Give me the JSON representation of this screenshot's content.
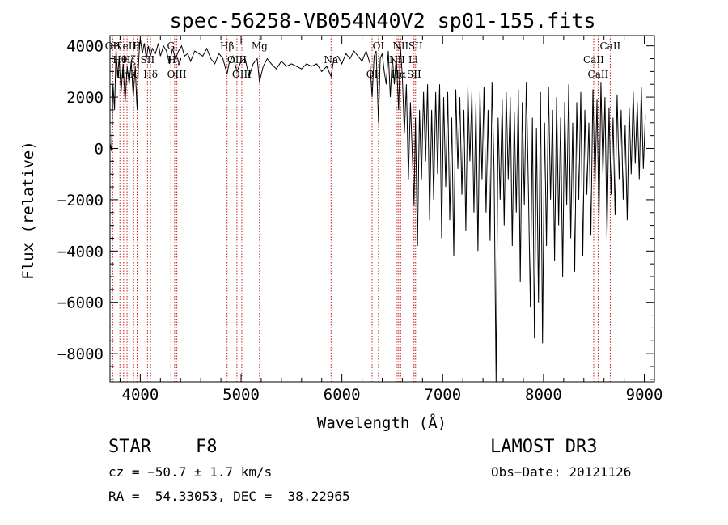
{
  "chart_data": {
    "type": "line",
    "title": "spec-56258-VB054N40V2_sp01-155.fits",
    "xlabel": "Wavelength (Å)",
    "ylabel": "Flux (relative)",
    "xlim": [
      3700,
      9100
    ],
    "ylim": [
      -9100,
      4400
    ],
    "xticks": [
      4000,
      5000,
      6000,
      7000,
      8000,
      9000
    ],
    "xtick_labels": [
      "4000",
      "5000",
      "6000",
      "7000",
      "8000",
      "9000"
    ],
    "yticks": [
      4000,
      2000,
      0,
      -2000,
      -4000,
      -6000,
      -8000
    ],
    "ytick_labels": [
      "4000",
      "2000",
      "0",
      "−2000",
      "−4000",
      "−6000",
      "−8000"
    ],
    "series": [
      {
        "name": "flux",
        "color": "#000000",
        "x": [
          3700,
          3715,
          3730,
          3745,
          3760,
          3775,
          3790,
          3810,
          3830,
          3850,
          3870,
          3890,
          3910,
          3930,
          3950,
          3965,
          3970,
          3980,
          3990,
          4000,
          4020,
          4040,
          4060,
          4080,
          4100,
          4120,
          4150,
          4180,
          4200,
          4230,
          4260,
          4290,
          4320,
          4350,
          4380,
          4410,
          4440,
          4470,
          4500,
          4540,
          4580,
          4620,
          4660,
          4700,
          4740,
          4780,
          4820,
          4861,
          4880,
          4920,
          4960,
          5000,
          5040,
          5080,
          5120,
          5160,
          5183,
          5220,
          5260,
          5300,
          5350,
          5400,
          5450,
          5500,
          5550,
          5600,
          5650,
          5700,
          5750,
          5800,
          5850,
          5893,
          5920,
          5960,
          6000,
          6040,
          6080,
          6120,
          6160,
          6200,
          6240,
          6280,
          6300,
          6320,
          6340,
          6363,
          6380,
          6400,
          6420,
          6440,
          6460,
          6480,
          6500,
          6520,
          6540,
          6563,
          6580,
          6600,
          6620,
          6640,
          6660,
          6680,
          6700,
          6716,
          6730,
          6750,
          6770,
          6790,
          6810,
          6830,
          6850,
          6870,
          6890,
          6910,
          6930,
          6950,
          6970,
          6990,
          7010,
          7030,
          7050,
          7070,
          7090,
          7110,
          7130,
          7150,
          7170,
          7190,
          7210,
          7230,
          7250,
          7270,
          7290,
          7310,
          7330,
          7350,
          7370,
          7390,
          7410,
          7430,
          7450,
          7470,
          7490,
          7510,
          7530,
          7550,
          7570,
          7590,
          7610,
          7630,
          7650,
          7670,
          7690,
          7710,
          7730,
          7750,
          7770,
          7790,
          7810,
          7830,
          7850,
          7870,
          7890,
          7910,
          7930,
          7950,
          7970,
          7990,
          8010,
          8030,
          8050,
          8070,
          8090,
          8110,
          8130,
          8150,
          8170,
          8190,
          8210,
          8230,
          8250,
          8270,
          8290,
          8310,
          8330,
          8350,
          8370,
          8390,
          8410,
          8430,
          8450,
          8470,
          8490,
          8510,
          8530,
          8550,
          8570,
          8590,
          8610,
          8630,
          8650,
          8670,
          8690,
          8710,
          8730,
          8750,
          8770,
          8790,
          8810,
          8830,
          8850,
          8870,
          8890,
          8910,
          8930,
          8950,
          8970,
          8990,
          9010
        ],
        "y": [
          200,
          -100,
          2500,
          1500,
          3900,
          2800,
          3500,
          2200,
          3300,
          1800,
          3200,
          2500,
          3400,
          2000,
          3200,
          1800,
          1500,
          3100,
          3800,
          4300,
          3700,
          4100,
          3500,
          4000,
          3600,
          3900,
          3700,
          4100,
          3600,
          4000,
          3800,
          3300,
          3900,
          3500,
          3800,
          4000,
          3600,
          3700,
          3400,
          3800,
          3700,
          3600,
          3900,
          3500,
          3300,
          3700,
          3500,
          2900,
          3300,
          3600,
          3000,
          3400,
          3500,
          2800,
          3300,
          3500,
          2600,
          3200,
          3500,
          3300,
          3100,
          3400,
          3200,
          3300,
          3200,
          3100,
          3300,
          3200,
          3300,
          3000,
          3200,
          2800,
          3500,
          3600,
          3300,
          3700,
          3500,
          3800,
          3600,
          3400,
          3800,
          3300,
          2000,
          3600,
          3800,
          1000,
          3500,
          3700,
          3000,
          2500,
          3800,
          2000,
          3600,
          2500,
          3600,
          1500,
          4000,
          2800,
          600,
          2500,
          -1200,
          1800,
          -400,
          -2200,
          1200,
          -3800,
          1500,
          -1200,
          2200,
          -500,
          2500,
          -2800,
          1500,
          -2000,
          2200,
          -1000,
          2500,
          -3500,
          2000,
          -1500,
          2200,
          -2800,
          1200,
          -4200,
          2300,
          -800,
          2000,
          -1800,
          1500,
          -3200,
          2400,
          -500,
          2200,
          -2500,
          1800,
          -4000,
          2200,
          -1200,
          2400,
          -2500,
          1500,
          -3600,
          2600,
          -900,
          -9200,
          1200,
          -2000,
          1900,
          -3000,
          2200,
          -1200,
          2000,
          -3800,
          1400,
          -2500,
          2300,
          -5200,
          1800,
          -2200,
          2600,
          -1500,
          -6200,
          1200,
          -7400,
          800,
          -6000,
          2200,
          -7600,
          1000,
          -3800,
          2400,
          -2000,
          1500,
          -4400,
          2000,
          -3000,
          1200,
          -5000,
          1800,
          -2200,
          2500,
          -3500,
          1000,
          -4800,
          1800,
          -2000,
          2200,
          -4200,
          1500,
          -1800,
          1000,
          -3400,
          2300,
          -1500,
          1900,
          -2800,
          2600,
          -1000,
          2000,
          -3500,
          1600,
          -1800,
          1200,
          -2600,
          2100,
          -1200,
          1500,
          -2000,
          900,
          -2800,
          1600,
          -1000,
          2200,
          -600,
          1800,
          -1200,
          2400,
          -800,
          1300
        ]
      }
    ],
    "emission_lines": [
      {
        "wl": 3727,
        "label": "OII"
      },
      {
        "wl": 3798,
        "label": "Hθ"
      },
      {
        "wl": 3835,
        "label": "Hη"
      },
      {
        "wl": 3869,
        "label": "NeIII"
      },
      {
        "wl": 3889,
        "label": "Hζ"
      },
      {
        "wl": 3934,
        "label": "K"
      },
      {
        "wl": 3969,
        "label": "H"
      },
      {
        "wl": 4072,
        "label": "SII"
      },
      {
        "wl": 4102,
        "label": "Hδ"
      },
      {
        "wl": 4304,
        "label": "G"
      },
      {
        "wl": 4341,
        "label": "Hγ"
      },
      {
        "wl": 4363,
        "label": "OIII"
      },
      {
        "wl": 4861,
        "label": "Hβ"
      },
      {
        "wl": 4959,
        "label": "OIII"
      },
      {
        "wl": 5007,
        "label": "OIII"
      },
      {
        "wl": 5183,
        "label": "Mg"
      },
      {
        "wl": 5893,
        "label": "Na"
      },
      {
        "wl": 6300,
        "label": "OI"
      },
      {
        "wl": 6363,
        "label": "OI"
      },
      {
        "wl": 6548,
        "label": "NII"
      },
      {
        "wl": 6563,
        "label": "Hα"
      },
      {
        "wl": 6583,
        "label": "NII"
      },
      {
        "wl": 6707,
        "label": "Li"
      },
      {
        "wl": 6716,
        "label": "SII"
      },
      {
        "wl": 6731,
        "label": "SII"
      },
      {
        "wl": 8498,
        "label": "CaII"
      },
      {
        "wl": 8542,
        "label": "CaII"
      },
      {
        "wl": 8662,
        "label": "CaII"
      }
    ]
  },
  "info": {
    "object_class": "STAR",
    "subclass": "F8",
    "survey": "LAMOST DR3",
    "cz": "cz = −50.7 ± 1.7 km/s",
    "obs_date": "Obs−Date: 20121126",
    "coords": "RA =  54.33053, DEC =  38.22965"
  }
}
